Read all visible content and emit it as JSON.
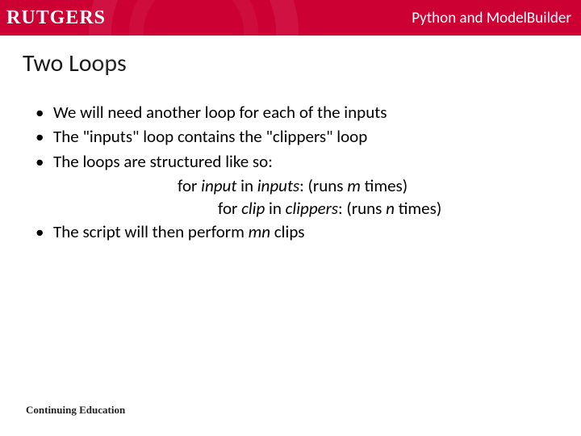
{
  "header": {
    "logo_text": "RUTGERS",
    "course_title": "Python and ModelBuilder",
    "bg_color": "#cc0033",
    "text_color": "#ffffff"
  },
  "slide": {
    "title": "Two Loops",
    "bullets": [
      "We will need another loop for each of the inputs",
      "The \"inputs\" loop contains the \"clippers\" loop",
      "The loops are structured like so:"
    ],
    "code_line1_prefix": "for ",
    "code_line1_var1": "input",
    "code_line1_mid": " in ",
    "code_line1_var2": "inputs",
    "code_line1_suffix": ": (runs ",
    "code_line1_m": "m",
    "code_line1_end": " times)",
    "code_line2_prefix": "for ",
    "code_line2_var1": "clip",
    "code_line2_mid": " in ",
    "code_line2_var2": "clippers",
    "code_line2_suffix": ": (runs ",
    "code_line2_n": "n",
    "code_line2_end": " times)",
    "bullet4_prefix": "The script will then perform ",
    "bullet4_mn": "mn",
    "bullet4_suffix": " clips"
  },
  "footer": {
    "text": "Continuing Education"
  }
}
